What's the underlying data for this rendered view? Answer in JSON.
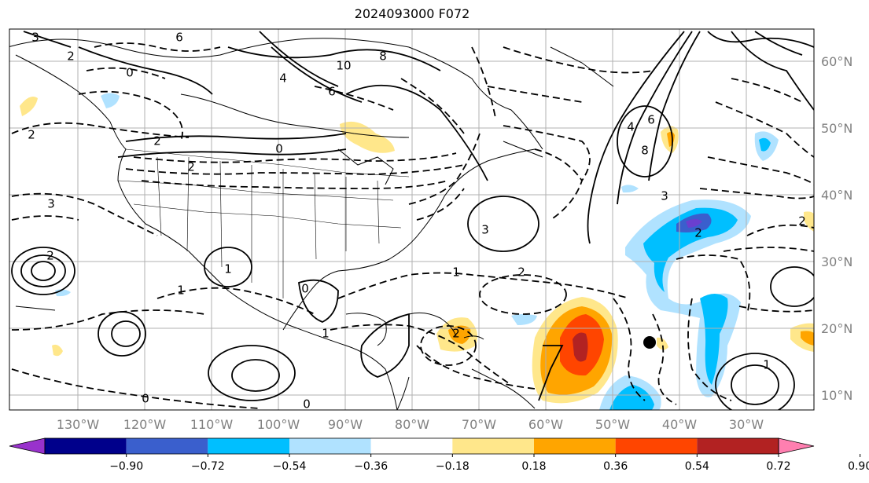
{
  "title": "2024093000 F072",
  "lon_labels": [
    "130°W",
    "120°W",
    "110°W",
    "100°W",
    "90°W",
    "80°W",
    "70°W",
    "60°W",
    "50°W",
    "40°W",
    "30°W"
  ],
  "lat_labels": [
    "60°N",
    "50°N",
    "40°N",
    "30°N",
    "20°N",
    "10°N"
  ],
  "colorbar": {
    "tick_labels": [
      "−0.90",
      "−0.72",
      "−0.54",
      "−0.36",
      "−0.18",
      "0.18",
      "0.36",
      "0.54",
      "0.72",
      "0.90"
    ],
    "colors": [
      "#9932cc",
      "#00008b",
      "#3a5fcd",
      "#00bfff",
      "#b0e2ff",
      "#ffffff",
      "#ffe78b",
      "#ffa500",
      "#ff4500",
      "#b22222",
      "#ff7fb0"
    ]
  },
  "contour_labels": [
    "3",
    "6",
    "2",
    "0",
    "10",
    "8",
    "6",
    "4",
    "2",
    "0",
    "2",
    "3",
    "2",
    "4",
    "6",
    "8",
    "2",
    "3",
    "3",
    "1",
    "2",
    "2",
    "1",
    "1",
    "0",
    "1",
    "2",
    "0",
    "2",
    "1",
    "0"
  ],
  "colors": {
    "pos_low": "#ffe78b",
    "pos_mid": "#ffa500",
    "pos_high": "#ff4500",
    "pos_max": "#b22222",
    "neg_low": "#b0e2ff",
    "neg_mid": "#00bfff",
    "neg_high": "#3a5fcd",
    "neg_max": "#6a3fcf"
  },
  "marker": {
    "type": "filled-circle",
    "color": "#000000"
  }
}
